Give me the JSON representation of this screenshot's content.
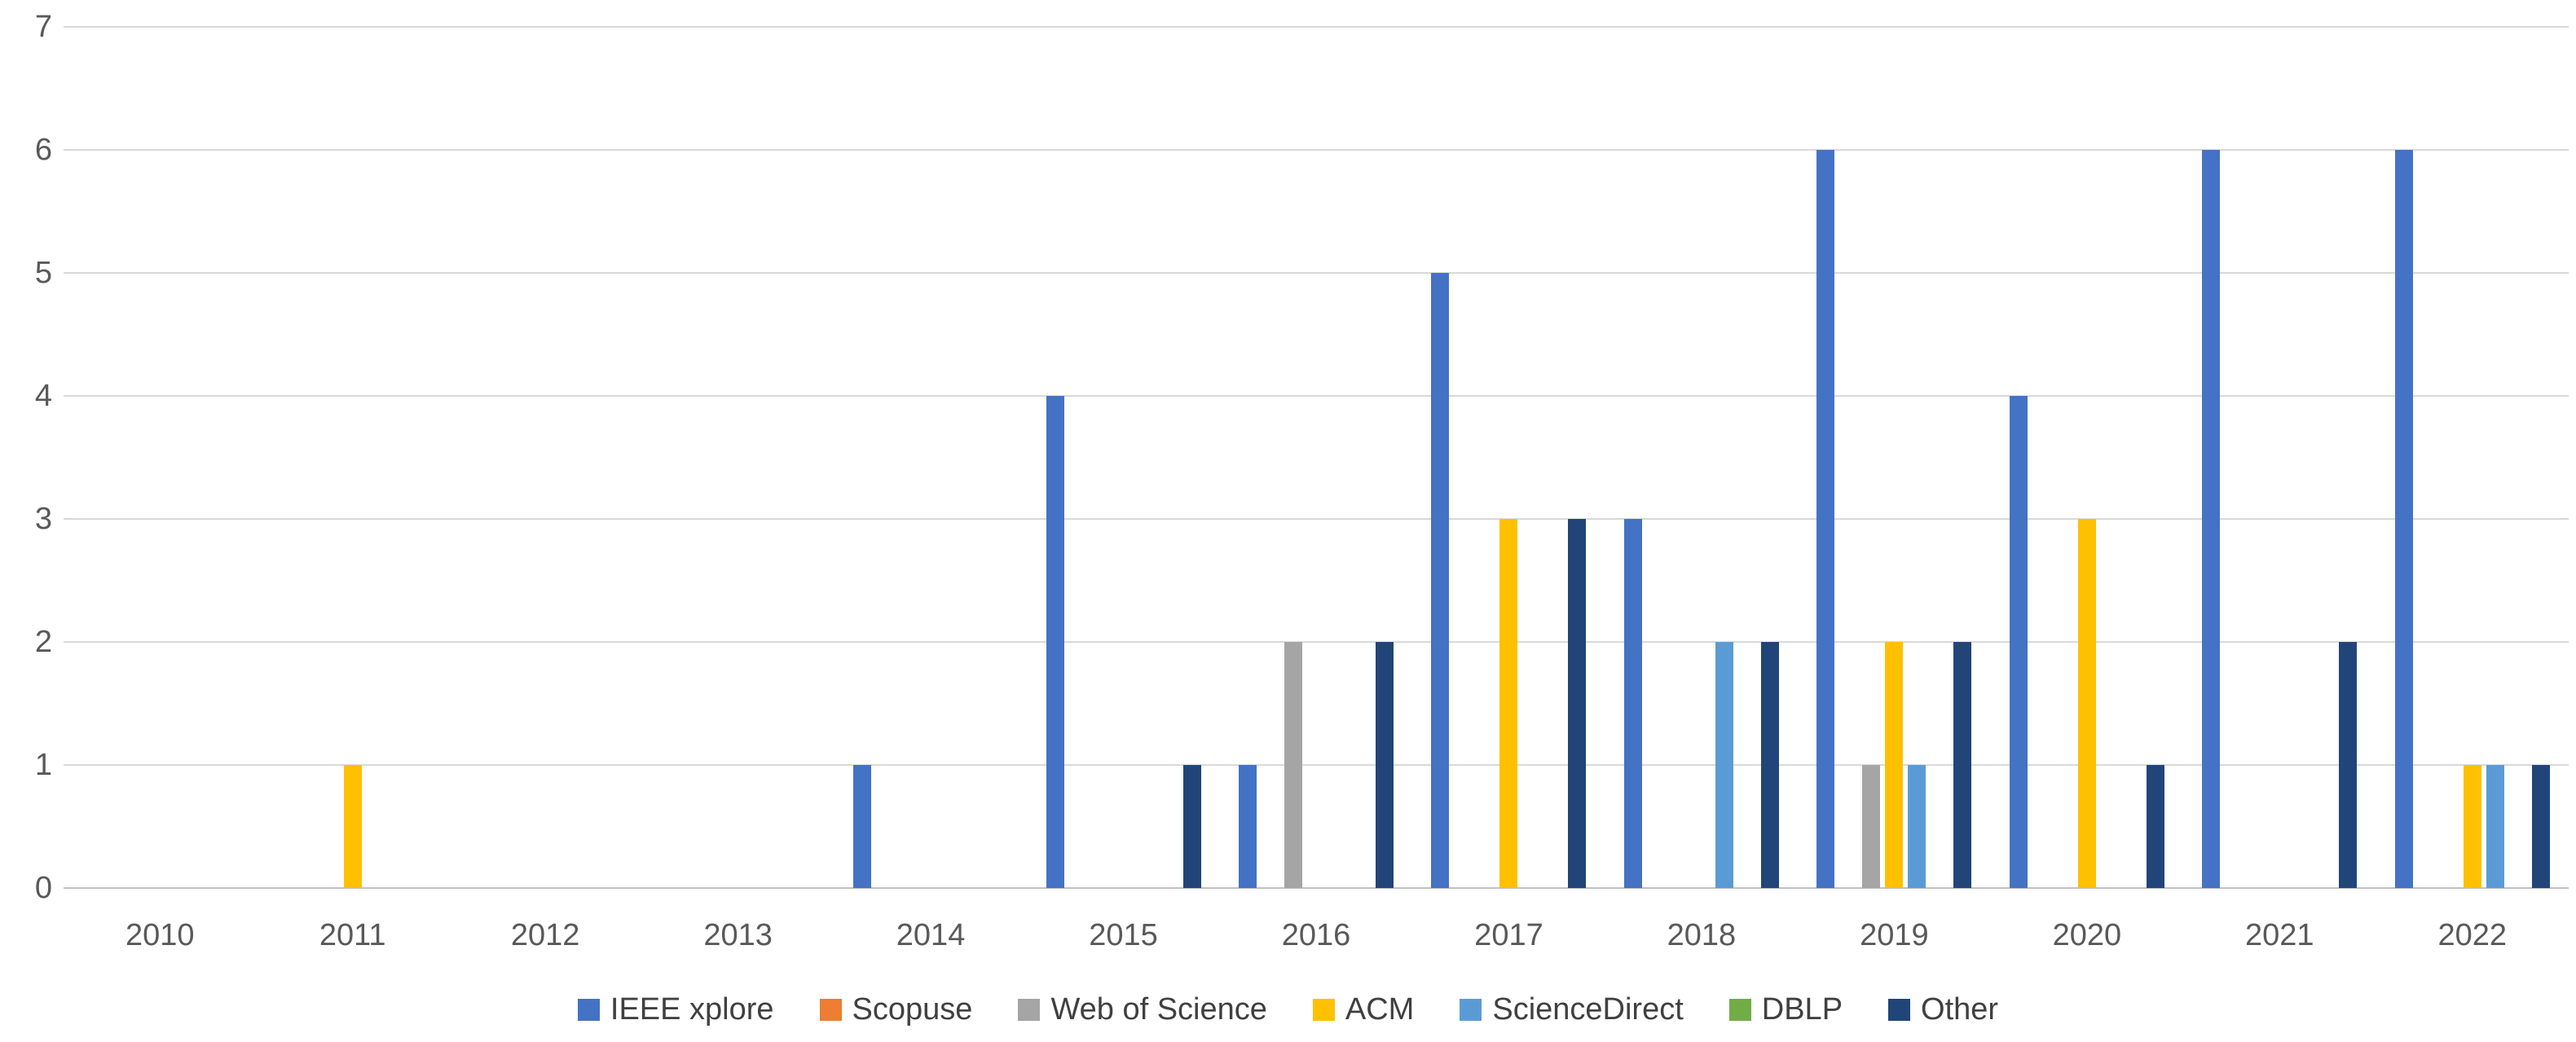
{
  "chart_data": {
    "type": "bar",
    "title": "",
    "categories": [
      "2010",
      "2011",
      "2012",
      "2013",
      "2014",
      "2015",
      "2016",
      "2017",
      "2018",
      "2019",
      "2020",
      "2021",
      "2022"
    ],
    "series": [
      {
        "name": "IEEE xplore",
        "color": "#4472C4",
        "values": [
          0,
          0,
          0,
          0,
          1,
          4,
          1,
          5,
          3,
          6,
          4,
          6,
          6
        ]
      },
      {
        "name": "Scopuse",
        "color": "#ED7D31",
        "values": [
          0,
          0,
          0,
          0,
          0,
          0,
          0,
          0,
          0,
          0,
          0,
          0,
          0
        ]
      },
      {
        "name": "Web of Science",
        "color": "#A5A5A5",
        "values": [
          0,
          0,
          0,
          0,
          0,
          0,
          2,
          0,
          0,
          1,
          0,
          0,
          0
        ]
      },
      {
        "name": "ACM",
        "color": "#FFC000",
        "values": [
          0,
          1,
          0,
          0,
          0,
          0,
          0,
          3,
          0,
          2,
          3,
          0,
          1
        ]
      },
      {
        "name": "ScienceDirect",
        "color": "#5B9BD5",
        "values": [
          0,
          0,
          0,
          0,
          0,
          0,
          0,
          0,
          2,
          1,
          0,
          0,
          1
        ]
      },
      {
        "name": "DBLP",
        "color": "#70AD47",
        "values": [
          0,
          0,
          0,
          0,
          0,
          0,
          0,
          0,
          0,
          0,
          0,
          0,
          0
        ]
      },
      {
        "name": "Other",
        "color": "#214578",
        "values": [
          0,
          0,
          0,
          0,
          0,
          1,
          2,
          3,
          2,
          2,
          1,
          2,
          1
        ]
      }
    ],
    "ylim": [
      0,
      7
    ],
    "yticks": [
      0,
      1,
      2,
      3,
      4,
      5,
      6,
      7
    ],
    "xlabel": "",
    "ylabel": "",
    "grid": "horizontal-major-only",
    "legend_position": "bottom-center",
    "plot_background": "#FFFFFF",
    "gridline_color": "#D9D9D9",
    "axis_line_color": "#C3C3C3",
    "tick_text_color": "#595959",
    "legend_text_color": "#404040"
  }
}
